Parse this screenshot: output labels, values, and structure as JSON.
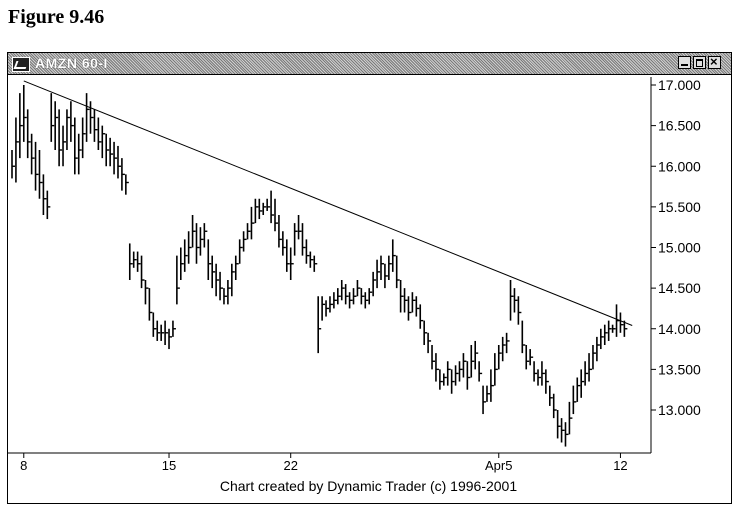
{
  "figure_label": "Figure 9.46",
  "window": {
    "title": "AMZN 60-I"
  },
  "footer": {
    "credit": "Chart created by Dynamic Trader (c) 1996-2001"
  },
  "chart_data": {
    "type": "bar",
    "symbol": "AMZN",
    "interval": "60-minute OHLC",
    "ylim": [
      12.35,
      17.1
    ],
    "y_ticks": [
      "17.000",
      "16.500",
      "16.000",
      "15.500",
      "15.000",
      "14.500",
      "14.000",
      "13.500",
      "13.000"
    ],
    "x_ticks": [
      {
        "label": "8",
        "bar": 3
      },
      {
        "label": "15",
        "bar": 40
      },
      {
        "label": "22",
        "bar": 71
      },
      {
        "label": "Apr5",
        "bar": 124
      },
      {
        "label": "12",
        "bar": 155
      }
    ],
    "bar_count": 162,
    "trendline": {
      "from": {
        "bar": 3,
        "price": 17.05
      },
      "to": {
        "bar": 158,
        "price": 14.04
      }
    },
    "grid": false,
    "bars": [
      [
        16.2,
        15.85,
        16.0
      ],
      [
        16.6,
        15.8,
        16.3
      ],
      [
        16.9,
        16.1,
        16.5
      ],
      [
        17.0,
        16.3,
        16.6
      ],
      [
        16.7,
        16.1,
        16.3
      ],
      [
        16.4,
        15.9,
        16.1
      ],
      [
        16.3,
        15.7,
        15.9
      ],
      [
        16.2,
        15.6,
        15.8
      ],
      [
        15.9,
        15.4,
        15.6
      ],
      [
        15.7,
        15.35,
        15.5
      ],
      [
        16.9,
        16.3,
        16.5
      ],
      [
        16.8,
        16.2,
        16.6
      ],
      [
        16.7,
        16.0,
        16.2
      ],
      [
        16.5,
        16.0,
        16.3
      ],
      [
        16.7,
        16.2,
        16.6
      ],
      [
        16.8,
        16.3,
        16.5
      ],
      [
        16.6,
        15.9,
        16.1
      ],
      [
        16.4,
        15.9,
        16.2
      ],
      [
        16.6,
        16.1,
        16.4
      ],
      [
        16.9,
        16.3,
        16.7
      ],
      [
        16.8,
        16.4,
        16.6
      ],
      [
        16.7,
        16.3,
        16.45
      ],
      [
        16.6,
        16.2,
        16.3
      ],
      [
        16.5,
        16.1,
        16.4
      ],
      [
        16.4,
        16.0,
        16.2
      ],
      [
        16.35,
        16.0,
        16.15
      ],
      [
        16.3,
        15.9,
        16.1
      ],
      [
        16.25,
        15.85,
        16.0
      ],
      [
        16.1,
        15.7,
        15.9
      ],
      [
        15.9,
        15.65,
        15.8
      ],
      [
        15.05,
        14.6,
        14.8
      ],
      [
        14.95,
        14.75,
        14.85
      ],
      [
        14.95,
        14.7,
        14.8
      ],
      [
        14.9,
        14.5,
        14.6
      ],
      [
        14.6,
        14.3,
        14.5
      ],
      [
        14.5,
        14.1,
        14.2
      ],
      [
        14.2,
        13.9,
        14.0
      ],
      [
        14.1,
        13.85,
        13.95
      ],
      [
        14.05,
        13.85,
        13.95
      ],
      [
        14.1,
        13.8,
        13.95
      ],
      [
        14.0,
        13.75,
        13.9
      ],
      [
        14.1,
        13.9,
        14.0
      ],
      [
        14.9,
        14.3,
        14.5
      ],
      [
        15.0,
        14.6,
        14.8
      ],
      [
        15.1,
        14.7,
        14.9
      ],
      [
        15.2,
        14.8,
        15.0
      ],
      [
        15.4,
        15.0,
        15.2
      ],
      [
        15.3,
        14.8,
        15.0
      ],
      [
        15.25,
        14.9,
        15.1
      ],
      [
        15.3,
        15.0,
        15.2
      ],
      [
        15.1,
        14.6,
        14.8
      ],
      [
        14.9,
        14.5,
        14.7
      ],
      [
        14.8,
        14.4,
        14.6
      ],
      [
        14.7,
        14.35,
        14.5
      ],
      [
        14.5,
        14.3,
        14.4
      ],
      [
        14.6,
        14.3,
        14.5
      ],
      [
        14.8,
        14.4,
        14.7
      ],
      [
        14.9,
        14.6,
        14.8
      ],
      [
        15.1,
        14.8,
        15.0
      ],
      [
        15.2,
        14.95,
        15.1
      ],
      [
        15.3,
        15.1,
        15.2
      ],
      [
        15.5,
        15.1,
        15.3
      ],
      [
        15.6,
        15.3,
        15.5
      ],
      [
        15.6,
        15.35,
        15.45
      ],
      [
        15.55,
        15.4,
        15.5
      ],
      [
        15.6,
        15.45,
        15.5
      ],
      [
        15.7,
        15.3,
        15.4
      ],
      [
        15.6,
        15.2,
        15.3
      ],
      [
        15.4,
        15.0,
        15.1
      ],
      [
        15.2,
        14.9,
        15.0
      ],
      [
        15.1,
        14.7,
        14.8
      ],
      [
        15.0,
        14.6,
        14.8
      ],
      [
        15.3,
        14.9,
        15.2
      ],
      [
        15.4,
        15.1,
        15.2
      ],
      [
        15.3,
        14.9,
        15.0
      ],
      [
        15.1,
        14.8,
        14.9
      ],
      [
        14.95,
        14.75,
        14.85
      ],
      [
        14.9,
        14.7,
        14.8
      ],
      [
        14.4,
        13.7,
        14.0
      ],
      [
        14.4,
        14.1,
        14.3
      ],
      [
        14.35,
        14.15,
        14.25
      ],
      [
        14.4,
        14.2,
        14.3
      ],
      [
        14.45,
        14.25,
        14.35
      ],
      [
        14.5,
        14.3,
        14.4
      ],
      [
        14.6,
        14.35,
        14.5
      ],
      [
        14.55,
        14.3,
        14.4
      ],
      [
        14.45,
        14.25,
        14.35
      ],
      [
        14.5,
        14.3,
        14.4
      ],
      [
        14.6,
        14.4,
        14.5
      ],
      [
        14.5,
        14.3,
        14.4
      ],
      [
        14.45,
        14.25,
        14.35
      ],
      [
        14.5,
        14.3,
        14.45
      ],
      [
        14.7,
        14.4,
        14.6
      ],
      [
        14.85,
        14.5,
        14.7
      ],
      [
        14.9,
        14.6,
        14.8
      ],
      [
        14.8,
        14.5,
        14.65
      ],
      [
        14.9,
        14.6,
        14.8
      ],
      [
        15.1,
        14.7,
        14.9
      ],
      [
        14.9,
        14.5,
        14.6
      ],
      [
        14.6,
        14.2,
        14.4
      ],
      [
        14.5,
        14.2,
        14.35
      ],
      [
        14.4,
        14.1,
        14.2
      ],
      [
        14.45,
        14.2,
        14.35
      ],
      [
        14.4,
        14.15,
        14.25
      ],
      [
        14.3,
        14.0,
        14.1
      ],
      [
        14.1,
        13.8,
        13.95
      ],
      [
        13.95,
        13.7,
        13.85
      ],
      [
        13.8,
        13.5,
        13.6
      ],
      [
        13.7,
        13.35,
        13.5
      ],
      [
        13.5,
        13.25,
        13.35
      ],
      [
        13.45,
        13.3,
        13.4
      ],
      [
        13.6,
        13.3,
        13.5
      ],
      [
        13.5,
        13.2,
        13.35
      ],
      [
        13.55,
        13.3,
        13.45
      ],
      [
        13.6,
        13.35,
        13.5
      ],
      [
        13.7,
        13.4,
        13.6
      ],
      [
        13.6,
        13.25,
        13.4
      ],
      [
        13.8,
        13.4,
        13.6
      ],
      [
        13.85,
        13.5,
        13.7
      ],
      [
        13.6,
        13.35,
        13.45
      ],
      [
        13.3,
        12.95,
        13.1
      ],
      [
        13.3,
        13.1,
        13.2
      ],
      [
        13.5,
        13.1,
        13.3
      ],
      [
        13.7,
        13.3,
        13.5
      ],
      [
        13.8,
        13.5,
        13.7
      ],
      [
        13.9,
        13.6,
        13.8
      ],
      [
        13.95,
        13.7,
        13.85
      ],
      [
        14.6,
        14.1,
        14.4
      ],
      [
        14.5,
        14.2,
        14.35
      ],
      [
        14.4,
        14.05,
        14.2
      ],
      [
        14.1,
        13.7,
        13.8
      ],
      [
        13.8,
        13.5,
        13.6
      ],
      [
        13.75,
        13.55,
        13.65
      ],
      [
        13.6,
        13.35,
        13.45
      ],
      [
        13.5,
        13.3,
        13.4
      ],
      [
        13.6,
        13.3,
        13.45
      ],
      [
        13.5,
        13.2,
        13.35
      ],
      [
        13.3,
        13.05,
        13.15
      ],
      [
        13.2,
        12.9,
        13.0
      ],
      [
        13.0,
        12.65,
        12.8
      ],
      [
        12.9,
        12.6,
        12.75
      ],
      [
        12.85,
        12.55,
        12.7
      ],
      [
        13.1,
        12.7,
        12.9
      ],
      [
        13.3,
        12.95,
        13.1
      ],
      [
        13.4,
        13.1,
        13.3
      ],
      [
        13.5,
        13.15,
        13.35
      ],
      [
        13.6,
        13.3,
        13.45
      ],
      [
        13.7,
        13.35,
        13.5
      ],
      [
        13.8,
        13.5,
        13.7
      ],
      [
        13.9,
        13.6,
        13.8
      ],
      [
        14.0,
        13.75,
        13.9
      ],
      [
        14.05,
        13.8,
        13.95
      ],
      [
        14.1,
        13.85,
        14.0
      ],
      [
        14.05,
        13.95,
        14.0
      ],
      [
        14.3,
        13.9,
        14.1
      ],
      [
        14.2,
        13.95,
        14.05
      ],
      [
        14.1,
        13.9,
        14.0
      ]
    ]
  }
}
